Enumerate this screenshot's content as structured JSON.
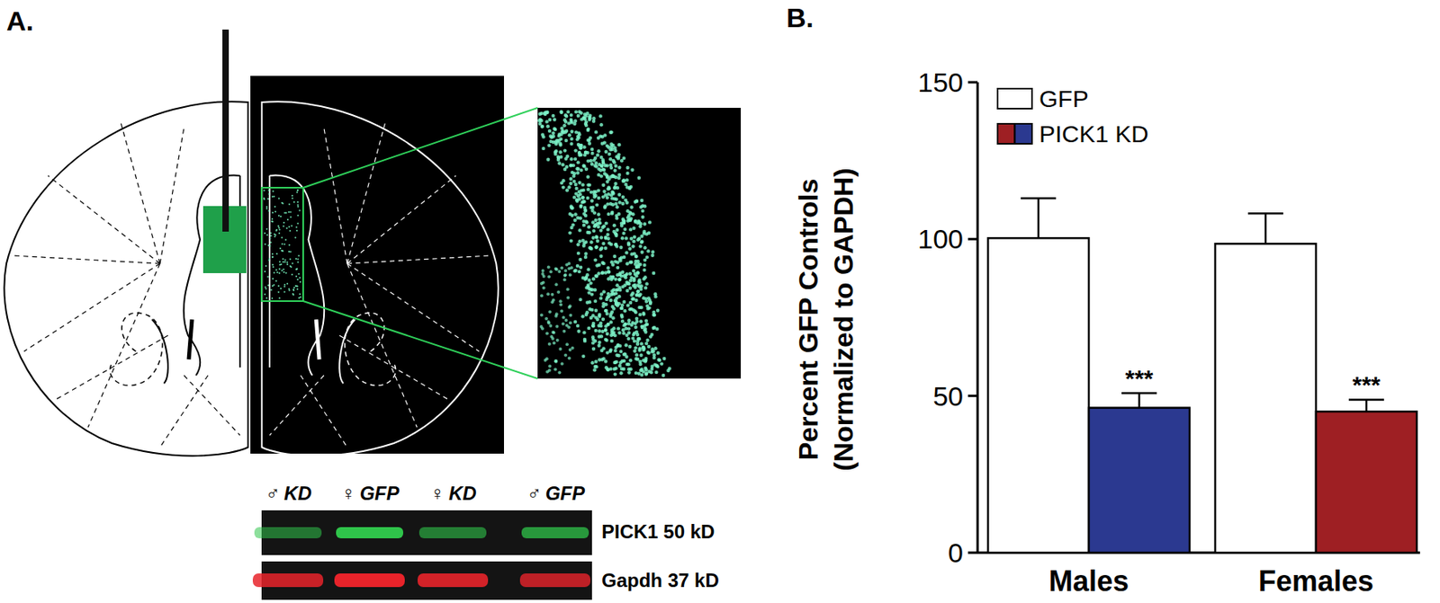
{
  "chart_data": {
    "type": "bar",
    "ylabel": [
      "Percent GFP Controls",
      "(Normalized to GAPDH)"
    ],
    "categories": [
      "Males",
      "Females"
    ],
    "series": [
      {
        "name": "GFP",
        "color": "#ffffff",
        "values": [
          100.3,
          98.5
        ],
        "errors": [
          12.7,
          9.7
        ]
      },
      {
        "name": "PICK1 KD",
        "colors": [
          "#2b3990",
          "#9e1f23"
        ],
        "values": [
          46.2,
          45.0
        ],
        "errors": [
          4.7,
          3.8
        ],
        "significance": [
          "***",
          "***"
        ]
      }
    ],
    "ylim": [
      0,
      150
    ],
    "yticks": [
      0,
      50,
      100,
      150
    ],
    "legend": "top-left",
    "grid": false
  },
  "figure": {
    "panel_labels": [
      "A.",
      "B."
    ],
    "blot": {
      "lanes": [
        "♂ KD",
        "♀ GFP",
        "♀ KD",
        "♂ GFP"
      ],
      "bands": [
        "PICK1 50 kD",
        "Gapdh 37 kD"
      ]
    }
  }
}
